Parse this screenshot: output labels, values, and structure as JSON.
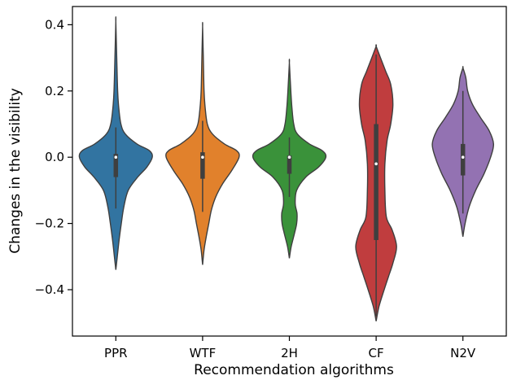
{
  "chart_data": {
    "type": "violin",
    "title": "",
    "xlabel": "Recommendation algorithms",
    "ylabel": "Changes in the visibility",
    "ylim": [
      -0.54,
      0.455
    ],
    "yticks": [
      -0.4,
      -0.2,
      0.0,
      0.2,
      0.4
    ],
    "ytick_labels": [
      "−0.4",
      "−0.2",
      "0.0",
      "0.2",
      "0.4"
    ],
    "categories": [
      "PPR",
      "WTF",
      "2H",
      "CF",
      "N2V"
    ],
    "grid": false,
    "legend": "none",
    "series": [
      {
        "category": "PPR",
        "color": "#3274a1",
        "min": -0.34,
        "max": 0.41,
        "q1": -0.06,
        "median": 0.0,
        "q3": 0.01,
        "whisker_low": -0.155,
        "whisker_high": 0.09,
        "profile": [
          [
            -0.34,
            0.0
          ],
          [
            -0.3,
            0.04
          ],
          [
            -0.25,
            0.09
          ],
          [
            -0.2,
            0.15
          ],
          [
            -0.15,
            0.22
          ],
          [
            -0.1,
            0.34
          ],
          [
            -0.06,
            0.6
          ],
          [
            -0.03,
            0.85
          ],
          [
            0.0,
            1.0
          ],
          [
            0.02,
            0.92
          ],
          [
            0.04,
            0.58
          ],
          [
            0.07,
            0.26
          ],
          [
            0.1,
            0.14
          ],
          [
            0.15,
            0.08
          ],
          [
            0.2,
            0.05
          ],
          [
            0.3,
            0.025
          ],
          [
            0.41,
            0.0
          ]
        ]
      },
      {
        "category": "WTF",
        "color": "#e1812c",
        "min": -0.325,
        "max": 0.395,
        "q1": -0.065,
        "median": 0.0,
        "q3": 0.015,
        "whisker_low": -0.165,
        "whisker_high": 0.11,
        "profile": [
          [
            -0.325,
            0.0
          ],
          [
            -0.28,
            0.04
          ],
          [
            -0.24,
            0.1
          ],
          [
            -0.2,
            0.17
          ],
          [
            -0.16,
            0.24
          ],
          [
            -0.12,
            0.36
          ],
          [
            -0.08,
            0.55
          ],
          [
            -0.04,
            0.8
          ],
          [
            0.0,
            1.0
          ],
          [
            0.02,
            0.93
          ],
          [
            0.04,
            0.6
          ],
          [
            0.07,
            0.27
          ],
          [
            0.1,
            0.13
          ],
          [
            0.15,
            0.07
          ],
          [
            0.2,
            0.04
          ],
          [
            0.3,
            0.02
          ],
          [
            0.395,
            0.0
          ]
        ]
      },
      {
        "category": "2H",
        "color": "#3a923a",
        "min": -0.305,
        "max": 0.285,
        "q1": -0.05,
        "median": 0.0,
        "q3": 0.005,
        "whisker_low": -0.12,
        "whisker_high": 0.06,
        "profile": [
          [
            -0.305,
            0.0
          ],
          [
            -0.27,
            0.05
          ],
          [
            -0.23,
            0.14
          ],
          [
            -0.2,
            0.2
          ],
          [
            -0.17,
            0.21
          ],
          [
            -0.14,
            0.16
          ],
          [
            -0.1,
            0.2
          ],
          [
            -0.06,
            0.45
          ],
          [
            -0.03,
            0.8
          ],
          [
            0.0,
            1.0
          ],
          [
            0.02,
            0.9
          ],
          [
            0.04,
            0.55
          ],
          [
            0.07,
            0.22
          ],
          [
            0.1,
            0.12
          ],
          [
            0.15,
            0.07
          ],
          [
            0.2,
            0.04
          ],
          [
            0.285,
            0.0
          ]
        ]
      },
      {
        "category": "CF",
        "color": "#c03d3e",
        "min": -0.495,
        "max": 0.335,
        "q1": -0.25,
        "median": -0.02,
        "q3": 0.1,
        "whisker_low": -0.48,
        "whisker_high": 0.31,
        "profile": [
          [
            -0.495,
            0.0
          ],
          [
            -0.45,
            0.08
          ],
          [
            -0.4,
            0.22
          ],
          [
            -0.36,
            0.34
          ],
          [
            -0.32,
            0.46
          ],
          [
            -0.27,
            0.56
          ],
          [
            -0.22,
            0.44
          ],
          [
            -0.18,
            0.28
          ],
          [
            -0.1,
            0.24
          ],
          [
            -0.02,
            0.24
          ],
          [
            0.05,
            0.3
          ],
          [
            0.1,
            0.4
          ],
          [
            0.16,
            0.46
          ],
          [
            0.22,
            0.4
          ],
          [
            0.26,
            0.26
          ],
          [
            0.3,
            0.12
          ],
          [
            0.335,
            0.0
          ]
        ]
      },
      {
        "category": "N2V",
        "color": "#9372b2",
        "min": -0.24,
        "max": 0.27,
        "q1": -0.055,
        "median": 0.0,
        "q3": 0.04,
        "whisker_low": -0.17,
        "whisker_high": 0.2,
        "profile": [
          [
            -0.24,
            0.0
          ],
          [
            -0.2,
            0.06
          ],
          [
            -0.15,
            0.17
          ],
          [
            -0.1,
            0.35
          ],
          [
            -0.05,
            0.58
          ],
          [
            0.0,
            0.76
          ],
          [
            0.04,
            0.84
          ],
          [
            0.08,
            0.72
          ],
          [
            0.12,
            0.48
          ],
          [
            0.16,
            0.26
          ],
          [
            0.2,
            0.13
          ],
          [
            0.24,
            0.08
          ],
          [
            0.27,
            0.0
          ]
        ]
      }
    ]
  }
}
